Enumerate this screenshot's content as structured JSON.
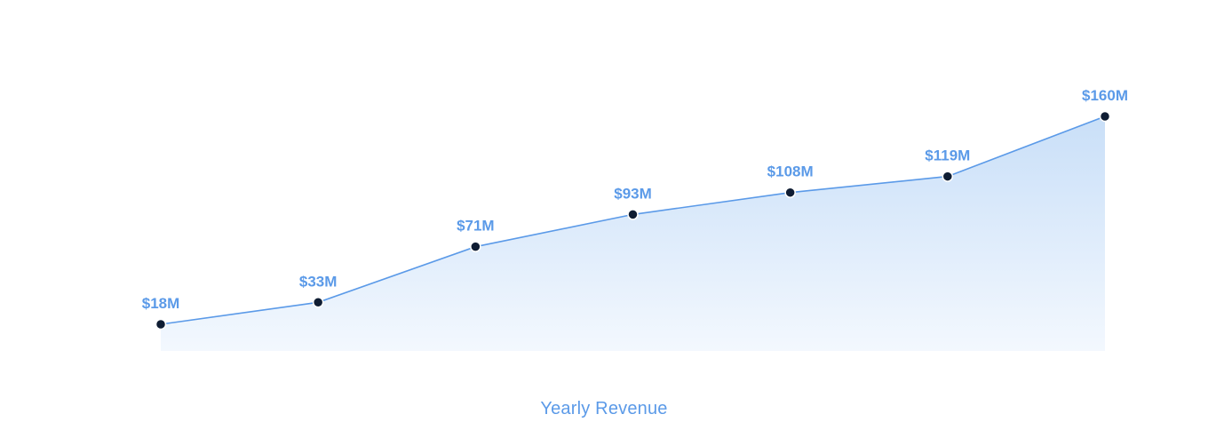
{
  "chart_data": {
    "type": "area",
    "title": "Yearly Revenue",
    "xlabel": "",
    "ylabel": "",
    "ylim": [
      0,
      170
    ],
    "grid": false,
    "legend": "none",
    "series": [
      {
        "values": [
          18,
          33,
          71,
          93,
          108,
          119,
          160
        ],
        "labels": [
          "$18M",
          "$33M",
          "$71M",
          "$93M",
          "$108M",
          "$119M",
          "$160M"
        ]
      }
    ],
    "colors": {
      "line": "#5b9ae8",
      "fill_top": "#c9dff8",
      "fill_bottom": "#f3f8fe",
      "marker_fill": "#0f1d33",
      "marker_stroke": "#ffffff",
      "label": "#5b9ae8"
    }
  }
}
